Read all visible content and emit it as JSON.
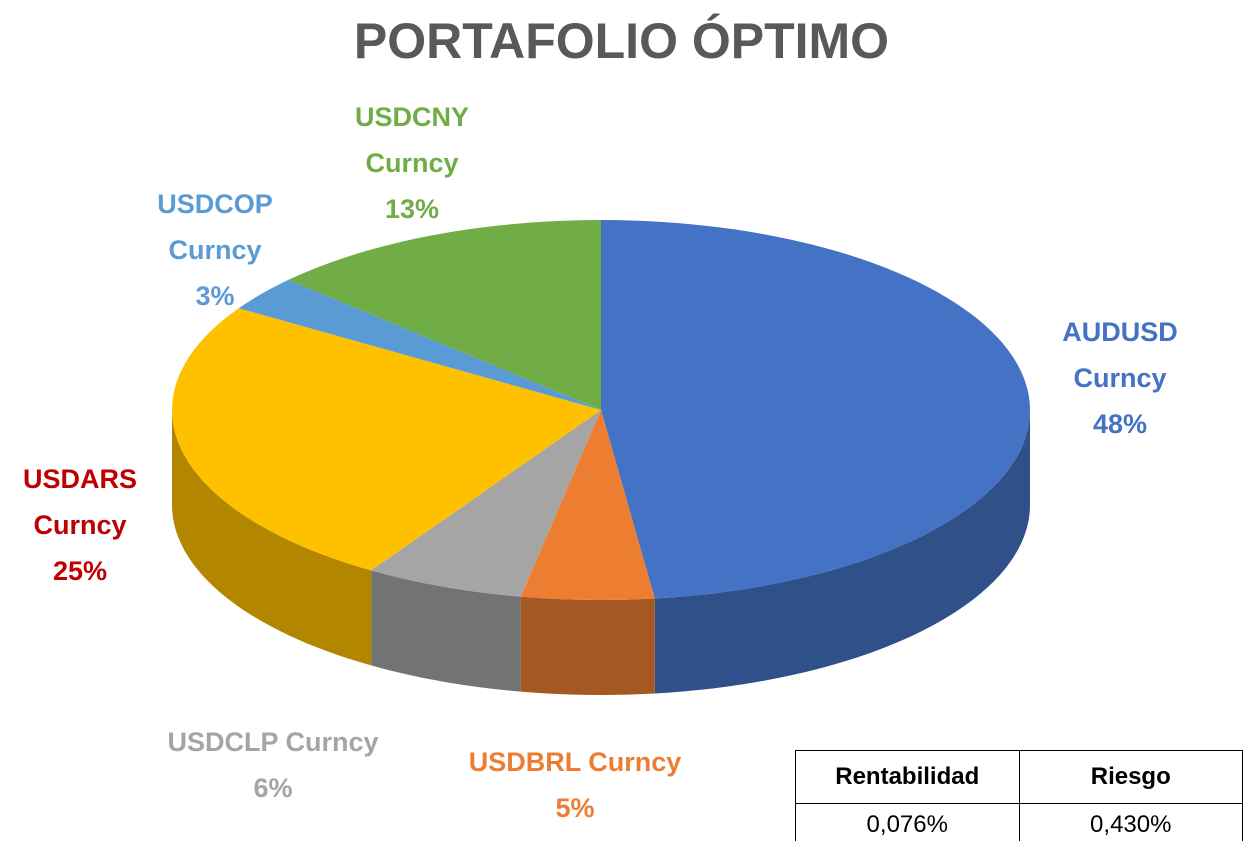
{
  "chart_data": {
    "type": "pie3d",
    "title": "PORTAFOLIO ÓPTIMO",
    "categories": [
      "AUDUSD Curncy",
      "USDBRL Curncy",
      "USDCLP Curncy",
      "USDARS Curncy",
      "USDCOP Curncy",
      "USDCNY Curncy"
    ],
    "values": [
      48,
      5,
      6,
      25,
      3,
      13
    ],
    "value_labels": [
      "48%",
      "5%",
      "6%",
      "25%",
      "3%",
      "13%"
    ],
    "colors": [
      "#4472c4",
      "#ed7d31",
      "#a5a5a5",
      "#ffc000",
      "#5b9bd5",
      "#70ad47"
    ],
    "label_colors": [
      "#4472c4",
      "#ed7d31",
      "#a5a5a5",
      "#c00000",
      "#5b9bd5",
      "#70ad47"
    ]
  },
  "table": {
    "header": [
      "Rentabilidad",
      "Riesgo"
    ],
    "rows": [
      [
        "0,076%",
        "0,430%"
      ]
    ]
  }
}
